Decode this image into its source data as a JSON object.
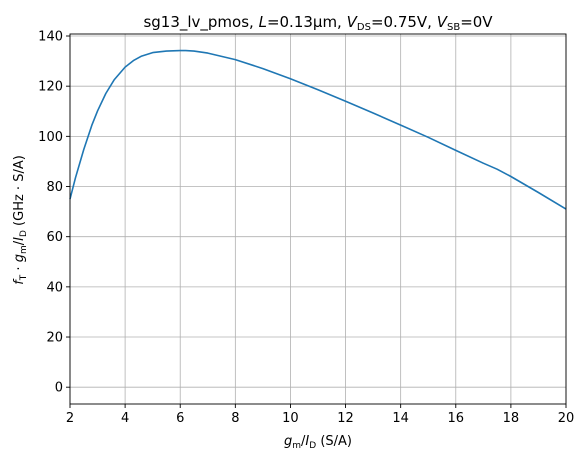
{
  "chart_data": {
    "type": "line",
    "title": {
      "device": "sg13_lv_pmos, ",
      "l_sym": "L",
      "l_val": "=0.13µm, ",
      "vds_sym": "V",
      "vds_sub": "DS",
      "vds_val": "=0.75V, ",
      "vsb_sym": "V",
      "vsb_sub": "SB",
      "vsb_val": "=0V"
    },
    "xlabel": {
      "g_sym": "g",
      "g_sub": "m",
      "slash": "/",
      "i_sym": "I",
      "i_sub": "D",
      "unit": " (S/A)"
    },
    "ylabel": {
      "f_sym": "f",
      "f_sub": "T",
      "dot": " · ",
      "g_sym": "g",
      "g_sub": "m",
      "slash": "/",
      "i_sym": "I",
      "i_sub": "D",
      "unit": " (GHz · S/A)"
    },
    "xlim": [
      2,
      20
    ],
    "ylim": [
      -6.7,
      140.8
    ],
    "xticks": [
      2,
      4,
      6,
      8,
      10,
      12,
      14,
      16,
      18,
      20
    ],
    "yticks": [
      0,
      20,
      40,
      60,
      80,
      100,
      120,
      140
    ],
    "grid": true,
    "series": [
      {
        "color": "#1f77b4",
        "x": [
          2.0,
          2.2,
          2.5,
          2.8,
          3.0,
          3.3,
          3.6,
          4.0,
          4.3,
          4.6,
          5.0,
          5.5,
          6.0,
          6.2,
          6.5,
          7.0,
          8.0,
          9.0,
          10.0,
          11.0,
          12.0,
          13.0,
          14.0,
          15.0,
          16.0,
          17.0,
          17.5,
          18.0,
          19.0,
          20.0
        ],
        "y": [
          75.0,
          83.5,
          94.8,
          104.6,
          110.2,
          117.1,
          122.5,
          127.6,
          130.2,
          132.0,
          133.4,
          134.0,
          134.2,
          134.2,
          134.0,
          133.2,
          130.6,
          127.0,
          123.0,
          118.6,
          114.0,
          109.3,
          104.5,
          99.6,
          94.4,
          89.3,
          86.9,
          84.0,
          77.6,
          71.0
        ]
      }
    ]
  }
}
